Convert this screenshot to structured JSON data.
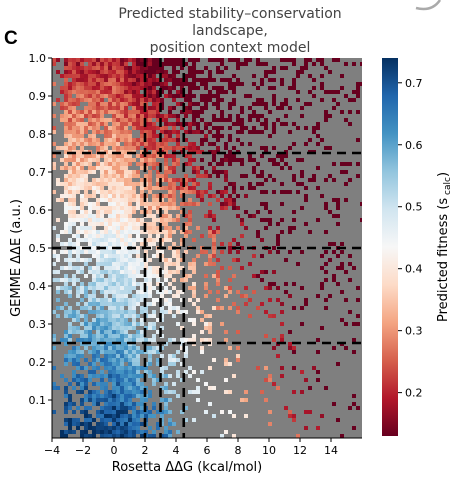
{
  "figure": {
    "panel_label": "C",
    "title_line1": "Predicted stability–conservation landscape,",
    "title_line2": "position context model"
  },
  "chart_data": {
    "type": "heatmap",
    "title": "Predicted stability–conservation landscape, position context model",
    "xlabel": "Rosetta ΔΔG (kcal/mol)",
    "ylabel": "GEMME ΔΔE (a.u.)",
    "xlim": [
      -4,
      16
    ],
    "ylim": [
      0,
      1.0
    ],
    "x_ticks": [
      -4,
      -2,
      0,
      2,
      4,
      6,
      8,
      10,
      12,
      14
    ],
    "x_tick_labels": [
      "−4",
      "−2",
      "0",
      "2",
      "4",
      "6",
      "8",
      "10",
      "12",
      "14"
    ],
    "y_ticks": [
      0.1,
      0.2,
      0.3,
      0.4,
      0.5,
      0.6,
      0.7,
      0.8,
      0.9,
      1.0
    ],
    "y_tick_labels": [
      "0.1",
      "0.2",
      "0.3",
      "0.4",
      "0.5",
      "0.6",
      "0.7",
      "0.8",
      "0.9",
      "1.0"
    ],
    "background_color": "#7f7f7f",
    "vertical_thresholds": [
      2,
      3,
      4.5
    ],
    "horizontal_thresholds": [
      0.25,
      0.5,
      0.75
    ],
    "colorbar": {
      "label": "Predicted fitness (s",
      "label_sub": "calc",
      "label_close": ")",
      "min": 0.13,
      "max": 0.74,
      "ticks": [
        0.2,
        0.3,
        0.4,
        0.5,
        0.6,
        0.7
      ],
      "tick_labels": [
        "0.2",
        "0.3",
        "0.4",
        "0.5",
        "0.6",
        "0.7"
      ],
      "colormap": "RdBu",
      "stops": [
        "#67001f",
        "#b2182b",
        "#d6604d",
        "#f4a582",
        "#fddbc7",
        "#f7f7f7",
        "#d1e5f0",
        "#92c5de",
        "#4393c3",
        "#2166ac",
        "#053061"
      ]
    },
    "trends": {
      "low_ddG_low_ddE": "high fitness (blue)",
      "high_ddG_or_high_ddE": "low fitness (red)",
      "sparse_region": "ddG > 8 with ddE < 0.5"
    }
  }
}
